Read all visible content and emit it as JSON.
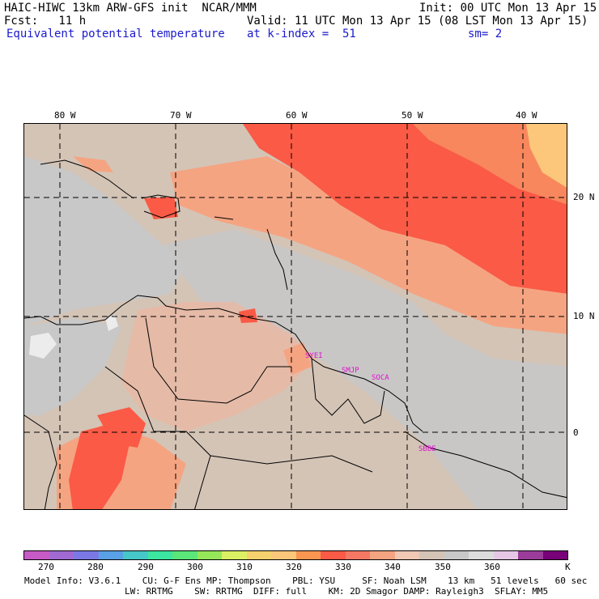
{
  "header": {
    "line1_left": "HAIC-HIWC 13km ARW-GFS init  NCAR/MMM",
    "line1_right": "Init: 00 UTC Mon 13 Apr 15",
    "line2_left": "Fcst:   11 h",
    "line2_right": "Valid: 11 UTC Mon 13 Apr 15 (08 LST Mon 13 Apr 15)",
    "line3_left": "Equivalent potential temperature",
    "line3_mid": "at k-index =  51",
    "line3_right": "sm= 2"
  },
  "map": {
    "lon_labels": [
      "80 W",
      "70 W",
      "60 W",
      "50 W",
      "40 W"
    ],
    "lat_labels": [
      "20 N",
      "10 N",
      "0"
    ],
    "stations": [
      "SYEI",
      "SMJP",
      "SOCA",
      "SBBE"
    ],
    "colors": {
      "ocean": "#d4c4b6",
      "warm": "#f5a482",
      "hot": "#fa5a46",
      "orange": "#f8875e",
      "yellow": "#fcc77a",
      "gray": "#c8c8c8",
      "station": "#e010d0"
    }
  },
  "colorbar": {
    "colors": [
      "#c85ac8",
      "#a06ad2",
      "#7b78e6",
      "#5aa0e6",
      "#46c8c8",
      "#3ce6a0",
      "#5ae678",
      "#96e65a",
      "#dcf064",
      "#f5d26e",
      "#fcc77a",
      "#fa9650",
      "#fa5a46",
      "#f57864",
      "#f5a482",
      "#f0c8b4",
      "#d4c4b6",
      "#c8c8c8",
      "#dcdcdc",
      "#e6c8e6",
      "#9b3c9b",
      "#780078"
    ],
    "ticks": [
      "270",
      "280",
      "290",
      "300",
      "310",
      "320",
      "330",
      "340",
      "350",
      "360"
    ],
    "unit": "K"
  },
  "footer": {
    "line1": "Model Info: V3.6.1    CU: G-F Ens MP: Thompson    PBL: YSU     SF: Noah LSM    13 km   51 levels   60 sec",
    "line2": "LW: RRTMG    SW: RRTMG  DIFF: full    KM: 2D Smagor DAMP: Rayleigh3  SFLAY: MM5"
  }
}
